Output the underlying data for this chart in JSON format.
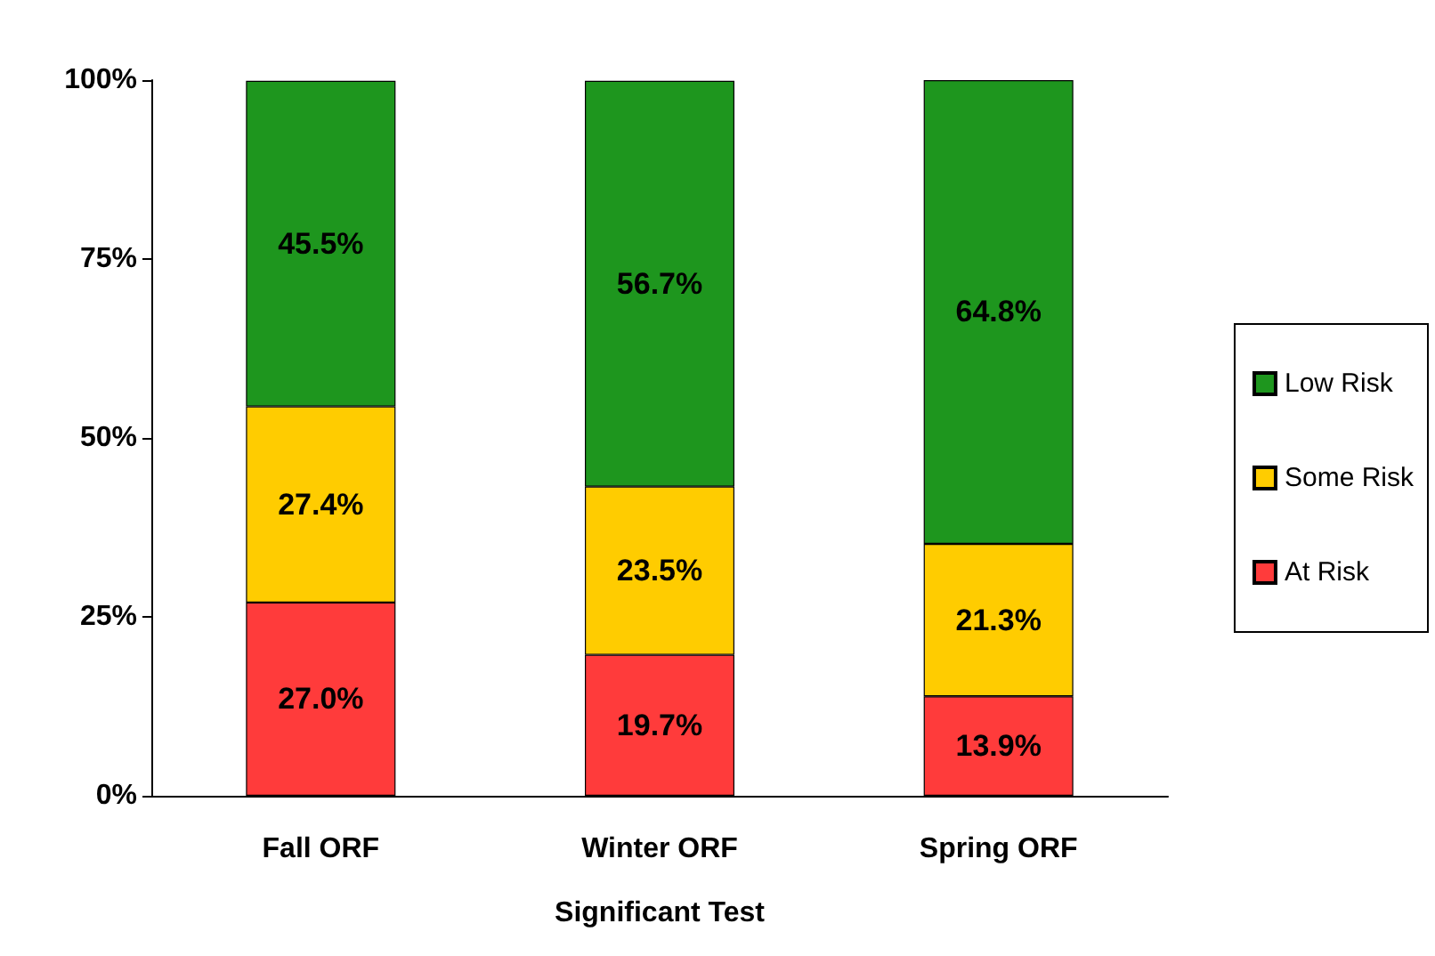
{
  "chart_data": {
    "type": "bar",
    "stacked": true,
    "xlabel": "Significant Test",
    "categories": [
      "Fall ORF",
      "Winter ORF",
      "Spring ORF"
    ],
    "series": [
      {
        "name": "At Risk",
        "color": "#ff3b3b",
        "values": [
          27.0,
          19.7,
          13.9
        ],
        "value_labels": [
          "27.0%",
          "19.7%",
          "13.9%"
        ]
      },
      {
        "name": "Some Risk",
        "color": "#ffcc00",
        "values": [
          27.4,
          23.5,
          21.3
        ],
        "value_labels": [
          "27.4%",
          "23.5%",
          "21.3%"
        ]
      },
      {
        "name": "Low Risk",
        "color": "#1e961e",
        "values": [
          45.5,
          56.7,
          64.8
        ],
        "value_labels": [
          "45.5%",
          "56.7%",
          "64.8%"
        ]
      }
    ],
    "ylim": [
      0,
      100
    ],
    "yticks": [
      {
        "value": 0,
        "label": "0%"
      },
      {
        "value": 25,
        "label": "25%"
      },
      {
        "value": 50,
        "label": "50%"
      },
      {
        "value": 75,
        "label": "75%"
      },
      {
        "value": 100,
        "label": "100%"
      }
    ],
    "grid": false,
    "legend": "right"
  }
}
